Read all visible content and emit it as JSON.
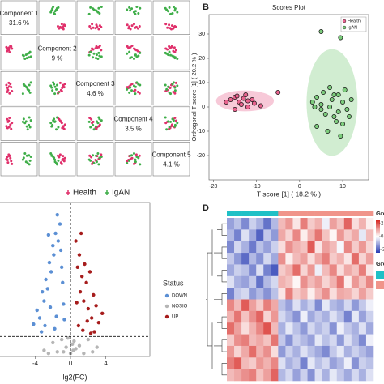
{
  "chart_data": [
    {
      "type": "scatter-matrix",
      "components": [
        {
          "label": "Component 1",
          "percent": "31.6 %"
        },
        {
          "label": "Component 2",
          "percent": "9 %"
        },
        {
          "label": "Component 3",
          "percent": "4.6 %"
        },
        {
          "label": "Component 4",
          "percent": "3.5 %"
        },
        {
          "label": "Component 5",
          "percent": "4.1 %"
        }
      ],
      "lim": [
        -4,
        4
      ],
      "series": [
        {
          "name": "Health",
          "color": "#e0306b",
          "points": [
            [
              -2.5,
              1.5,
              0.5,
              -1,
              0.8
            ],
            [
              -2.8,
              1.0,
              -0.5,
              0.5,
              -1
            ],
            [
              -2.2,
              2.0,
              1.2,
              -0.3,
              0.2
            ],
            [
              -3.0,
              0.5,
              -1.0,
              1.2,
              0.5
            ],
            [
              -2.0,
              1.8,
              0.3,
              -1.5,
              -0.6
            ],
            [
              -2.6,
              0.8,
              1.5,
              0.8,
              1.2
            ],
            [
              -1.8,
              1.2,
              -0.8,
              0.2,
              -1.4
            ],
            [
              -3.2,
              1.6,
              0.9,
              -0.7,
              0.0
            ],
            [
              -2.4,
              0.2,
              -1.4,
              1.6,
              0.9
            ],
            [
              -2.9,
              1.3,
              0.1,
              -1.2,
              -0.3
            ]
          ]
        },
        {
          "name": "IgAN",
          "color": "#3fae49",
          "points": [
            [
              1.8,
              -0.5,
              0.4,
              0.6,
              -0.8
            ],
            [
              2.5,
              -1.2,
              -0.6,
              -0.4,
              1.0
            ],
            [
              1.2,
              -0.8,
              1.1,
              1.3,
              0.3
            ],
            [
              2.8,
              0.3,
              -1.2,
              -1.0,
              -0.5
            ],
            [
              1.5,
              -1.6,
              0.7,
              0.2,
              1.5
            ],
            [
              2.2,
              -0.2,
              -0.3,
              -1.6,
              -1.2
            ],
            [
              3.0,
              -1.0,
              1.6,
              0.9,
              0.6
            ],
            [
              1.0,
              -0.6,
              -1.5,
              0.5,
              -0.2
            ],
            [
              2.0,
              -1.4,
              0.2,
              -0.8,
              0.9
            ],
            [
              2.6,
              0.0,
              0.9,
              1.7,
              -1.5
            ]
          ]
        }
      ]
    },
    {
      "type": "scatter",
      "panel": "B",
      "title": "Scores Plot",
      "x_label": "T score [1] ( 18.2 % )",
      "y_label": "Orthogonal T score [1] ( 20.2 % )",
      "xlim": [
        -21,
        16
      ],
      "ylim": [
        -30,
        38
      ],
      "xticks": [
        -20,
        -10,
        0,
        10
      ],
      "yticks": [
        -20,
        -10,
        0,
        10,
        20,
        30
      ],
      "legend": "top-right",
      "series": [
        {
          "name": "Health",
          "color": "#e8638e",
          "x": [
            -16,
            -15,
            -14,
            -13.5,
            -13,
            -12,
            -12,
            -11,
            -10.5,
            -15,
            -17,
            -9,
            -14.5,
            -12.5,
            -5
          ],
          "values": [
            3,
            4,
            2,
            1,
            3.5,
            2.5,
            0,
            3,
            1.5,
            -1,
            2,
            0.5,
            4.5,
            5,
            6
          ]
        },
        {
          "name": "IgAN",
          "color": "#7ccc7c",
          "x": [
            3,
            4,
            5,
            5.5,
            6,
            7,
            7.5,
            8,
            8.5,
            9,
            10,
            10.5,
            11,
            4,
            6.5,
            8,
            9.5,
            12,
            5,
            7,
            9,
            10,
            3.5,
            11.5,
            5,
            9.5
          ],
          "values": [
            2,
            4,
            -1,
            6,
            -3,
            0,
            3,
            5,
            -6,
            -2,
            2,
            7,
            -1,
            -8,
            -10,
            -4,
            -12,
            3,
            1,
            8,
            5,
            -7,
            0,
            -4,
            31,
            28.5
          ]
        }
      ]
    },
    {
      "type": "volcano",
      "x_label": "lg2(FC)",
      "xlim": [
        -8,
        9
      ],
      "ylim": [
        0,
        10
      ],
      "xticks": [
        -4,
        0,
        4
      ],
      "hline": 1.3,
      "vline": 0,
      "legend_title": "Status",
      "series": [
        {
          "name": "DOWN",
          "color": "#5b8fd4",
          "x": [
            -4.2,
            -3.8,
            -3.5,
            -3.2,
            -3.0,
            -2.8,
            -2.6,
            -2.4,
            -2.2,
            -2.0,
            -1.9,
            -1.7,
            -1.5,
            -1.4,
            -1.2,
            -1.0,
            -0.9,
            -0.8,
            -1.6,
            -2.3,
            -2.9,
            -1.1,
            -0.7,
            -1.8,
            -2.5,
            -3.3
          ],
          "values": [
            2.1,
            3.0,
            2.5,
            4.2,
            3.6,
            5.0,
            4.4,
            6.1,
            5.5,
            7.2,
            6.6,
            8.0,
            9.2,
            7.5,
            8.6,
            5.8,
            4.8,
            3.4,
            2.6,
            3.2,
            2.0,
            6.9,
            2.4,
            1.8,
            7.9,
            1.6
          ]
        },
        {
          "name": "NOSIG",
          "color": "#b5b5b5",
          "x": [
            -3,
            -2,
            -1.5,
            -1,
            -0.5,
            -0.3,
            0,
            0.2,
            0.4,
            0.6,
            1,
            1.5,
            2,
            3,
            -0.8,
            0.3,
            -2.5,
            2.5
          ],
          "values": [
            0.4,
            0.9,
            0.3,
            1.1,
            0.6,
            1.2,
            0.2,
            0.8,
            1.0,
            0.5,
            0.7,
            0.2,
            1.1,
            0.6,
            0.3,
            0.4,
            0.2,
            0.3
          ]
        },
        {
          "name": "UP",
          "color": "#a61c1c",
          "x": [
            0.6,
            0.8,
            1.0,
            1.1,
            1.3,
            1.5,
            1.6,
            1.8,
            2.0,
            2.2,
            2.4,
            2.6,
            2.9,
            3.2,
            3.6,
            0.9,
            1.4,
            1.9,
            2.3,
            0.7,
            1.2,
            2.7
          ],
          "values": [
            7.5,
            5.8,
            6.6,
            4.2,
            5.2,
            3.6,
            6.0,
            4.8,
            3.1,
            5.5,
            2.5,
            4.0,
            3.3,
            2.2,
            2.8,
            2.0,
            1.7,
            2.3,
            1.5,
            3.5,
            8.0,
            1.6
          ]
        }
      ]
    },
    {
      "type": "heatmap",
      "panel": "D",
      "legend_title": "Group",
      "zlim": [
        -2.5,
        2.5
      ],
      "color_ticks": [
        2,
        0,
        -2
      ],
      "column_annotation": [
        "#1fc0c6",
        "#1fc0c6",
        "#1fc0c6",
        "#1fc0c6",
        "#1fc0c6",
        "#1fc0c6",
        "#1fc0c6",
        "#f0948a",
        "#f0948a",
        "#f0948a",
        "#f0948a",
        "#f0948a",
        "#f0948a",
        "#f0948a",
        "#f0948a",
        "#f0948a",
        "#f0948a",
        "#f0948a",
        "#f0948a",
        "#f0948a"
      ],
      "matrix": [
        [
          -1.2,
          -0.8,
          -1.5,
          -0.6,
          -1.0,
          -1.8,
          -0.9,
          0.8,
          1.2,
          0.3,
          1.5,
          0.6,
          0.9,
          -0.2,
          1.1,
          0.7,
          1.8,
          0.4,
          0.9,
          0.2
        ],
        [
          -0.9,
          -1.6,
          -0.4,
          -1.1,
          -2.0,
          -0.7,
          -1.3,
          1.0,
          0.5,
          1.4,
          0.2,
          0.9,
          1.6,
          0.7,
          0.1,
          1.2,
          0.6,
          1.0,
          -0.3,
          0.8
        ],
        [
          -1.5,
          -0.5,
          -1.0,
          -1.7,
          -0.8,
          -1.2,
          -0.6,
          0.4,
          1.3,
          0.9,
          0.7,
          1.9,
          0.3,
          1.1,
          0.8,
          -0.1,
          1.4,
          0.6,
          1.2,
          0.5
        ],
        [
          -0.7,
          -1.3,
          -1.9,
          -0.9,
          -1.4,
          -0.5,
          -1.1,
          1.3,
          0.2,
          0.8,
          1.1,
          0.4,
          1.0,
          1.5,
          0.6,
          0.9,
          0.3,
          1.7,
          0.5,
          1.1
        ],
        [
          -1.1,
          -0.6,
          -0.8,
          -1.5,
          -0.4,
          -1.6,
          -2.1,
          0.6,
          0.9,
          1.7,
          0.5,
          1.2,
          -0.2,
          0.8,
          1.4,
          0.4,
          1.0,
          0.7,
          1.5,
          0.3
        ],
        [
          -0.4,
          -1.0,
          -1.2,
          -0.7,
          -1.8,
          -0.9,
          -0.5,
          0.9,
          0.7,
          0.1,
          1.3,
          0.8,
          1.1,
          0.5,
          0.9,
          1.6,
          0.2,
          1.2,
          0.7,
          1.4
        ],
        [
          -1.6,
          -0.7,
          -0.5,
          -1.3,
          -0.9,
          -1.4,
          -0.8,
          0.3,
          1.5,
          0.6,
          0.9,
          0.2,
          0.8,
          1.3,
          0.4,
          1.0,
          0.9,
          0.5,
          1.1,
          0.6
        ],
        [
          1.4,
          0.8,
          1.9,
          1.1,
          0.6,
          1.5,
          1.0,
          -0.8,
          -1.2,
          -0.4,
          -1.0,
          -0.6,
          -1.5,
          -0.3,
          -0.9,
          -1.1,
          -0.5,
          -1.3,
          -0.7,
          -0.2
        ],
        [
          0.9,
          1.6,
          0.7,
          1.3,
          1.8,
          0.5,
          1.2,
          -0.5,
          -0.9,
          -1.4,
          -0.2,
          -1.1,
          -0.7,
          -1.0,
          -0.4,
          -0.8,
          -1.6,
          -0.3,
          -1.2,
          -0.6
        ],
        [
          1.7,
          1.1,
          0.4,
          0.9,
          1.4,
          2.0,
          0.8,
          -1.0,
          -0.3,
          -0.8,
          -1.3,
          -0.5,
          -0.9,
          -0.6,
          -1.4,
          -0.2,
          -0.7,
          -1.0,
          -0.4,
          -1.1
        ],
        [
          0.6,
          1.3,
          1.5,
          0.8,
          1.0,
          0.7,
          1.6,
          -0.7,
          -1.4,
          -0.6,
          -0.9,
          -1.2,
          -0.3,
          -0.8,
          -0.5,
          -1.3,
          -0.4,
          -0.9,
          -1.5,
          -0.2
        ],
        [
          1.2,
          0.5,
          1.0,
          1.7,
          0.9,
          1.3,
          0.4,
          -1.3,
          -0.6,
          -1.0,
          -0.4,
          -0.8,
          -1.1,
          -1.5,
          -0.7,
          -0.3,
          -1.0,
          -0.6,
          -0.9,
          -1.2
        ],
        [
          1.5,
          1.9,
          0.8,
          0.6,
          1.2,
          0.9,
          1.4,
          -0.4,
          -1.0,
          -0.7,
          -1.6,
          -0.3,
          -0.8,
          -0.5,
          -1.2,
          -0.9,
          -0.2,
          -1.4,
          -0.6,
          -0.8
        ],
        [
          0.8,
          1.0,
          1.3,
          1.5,
          0.7,
          1.1,
          1.8,
          -0.9,
          -0.5,
          -1.2,
          -0.6,
          -1.4,
          -0.4,
          -1.0,
          -0.3,
          -0.7,
          -1.1,
          -0.5,
          -1.0,
          -0.4
        ]
      ]
    }
  ]
}
